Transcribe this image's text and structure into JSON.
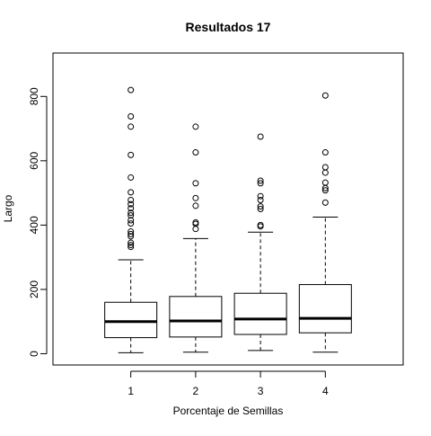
{
  "chart_data": {
    "type": "boxplot",
    "title": "Resultados 17",
    "xlabel": "Porcentaje de Semillas",
    "ylabel": "Largo",
    "categories": [
      "1",
      "2",
      "3",
      "4"
    ],
    "y_ticks": [
      0,
      200,
      400,
      600,
      800
    ],
    "y_tick_labels": [
      "0",
      "200",
      "400",
      "600",
      "800"
    ],
    "ylim": [
      -35,
      935
    ],
    "xlim": [
      -0.2,
      5.2
    ],
    "boxes": [
      {
        "category": "1",
        "whisker_low": 3,
        "q1": 50,
        "median": 100,
        "q3": 160,
        "whisker_high": 292,
        "outliers": [
          820,
          738,
          706,
          618,
          548,
          502,
          478,
          465,
          452,
          438,
          430,
          415,
          405,
          380,
          372,
          365,
          345,
          338,
          332
        ]
      },
      {
        "category": "2",
        "whisker_low": 5,
        "q1": 52,
        "median": 102,
        "q3": 178,
        "whisker_high": 358,
        "outliers": [
          706,
          626,
          530,
          484,
          460,
          408,
          404,
          388
        ]
      },
      {
        "category": "3",
        "whisker_low": 10,
        "q1": 60,
        "median": 108,
        "q3": 188,
        "whisker_high": 378,
        "outliers": [
          675,
          538,
          530,
          490,
          478,
          458,
          450,
          400,
          396
        ]
      },
      {
        "category": "4",
        "whisker_low": 5,
        "q1": 65,
        "median": 110,
        "q3": 215,
        "whisker_high": 425,
        "outliers": [
          803,
          626,
          580,
          563,
          532,
          515,
          508,
          470
        ]
      }
    ],
    "grid": false,
    "legend": "none"
  }
}
